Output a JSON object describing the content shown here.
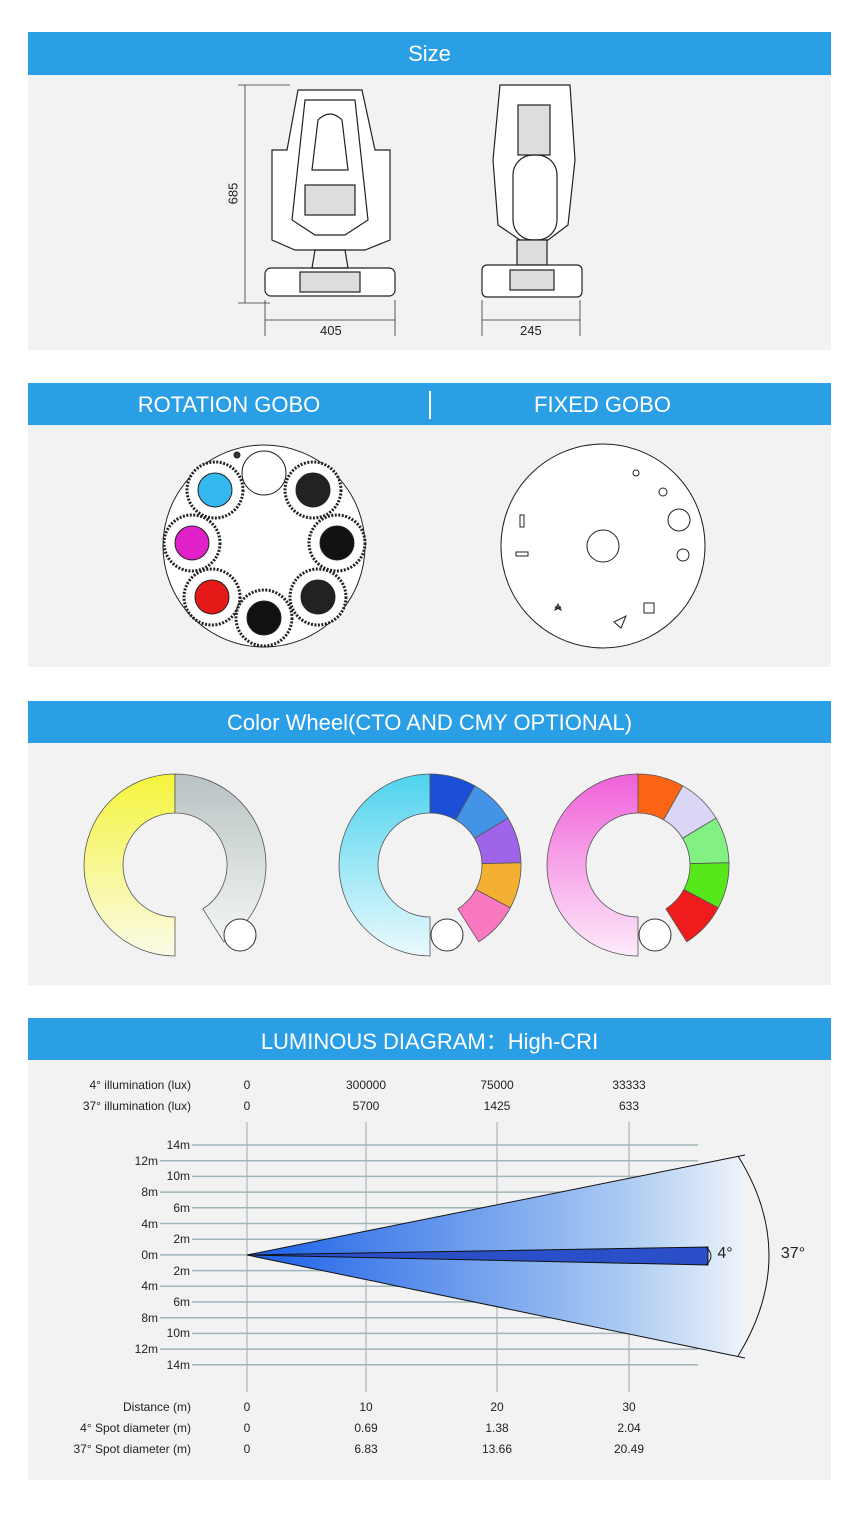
{
  "size": {
    "title": "Size",
    "height": "685",
    "width_front": "405",
    "width_side": "245"
  },
  "gobo": {
    "rotation_title": "ROTATION GOBO",
    "fixed_title": "FIXED GOBO"
  },
  "color_wheel": {
    "title": "Color Wheel(CTO AND CMY OPTIONAL)",
    "wheels": [
      {
        "left": "#f4f43c",
        "right": [
          "#bcc6c6"
        ]
      },
      {
        "left": "#4ed3ee",
        "right": [
          "#1a4fd6",
          "#4394e6",
          "#a064ea",
          "#f4b030",
          "#fa78c0"
        ]
      },
      {
        "left": "#f060d8",
        "right": [
          "#fa6414",
          "#dcd6f6",
          "#82f082",
          "#56e81a",
          "#ee1c1c"
        ]
      }
    ]
  },
  "luminous": {
    "title": "LUMINOUS DIAGRAM：High-CRI",
    "rows_top": [
      {
        "label": "4° illumination (lux)",
        "values": [
          "0",
          "300000",
          "75000",
          "33333"
        ]
      },
      {
        "label": "37° illumination (lux)",
        "values": [
          "0",
          "5700",
          "1425",
          "633"
        ]
      }
    ],
    "rows_bottom": [
      {
        "label": "Distance (m)",
        "values": [
          "0",
          "10",
          "20",
          "30"
        ]
      },
      {
        "label": "4° Spot diameter (m)",
        "values": [
          "0",
          "0.69",
          "1.38",
          "2.04"
        ]
      },
      {
        "label": "37° Spot diameter (m)",
        "values": [
          "0",
          "6.83",
          "13.66",
          "20.49"
        ]
      }
    ],
    "y_labels": [
      "14m",
      "12m",
      "10m",
      "8m",
      "6m",
      "4m",
      "2m",
      "0m",
      "2m",
      "4m",
      "6m",
      "8m",
      "10m",
      "12m",
      "14m"
    ],
    "angle_narrow": "4°",
    "angle_wide": "37°"
  }
}
